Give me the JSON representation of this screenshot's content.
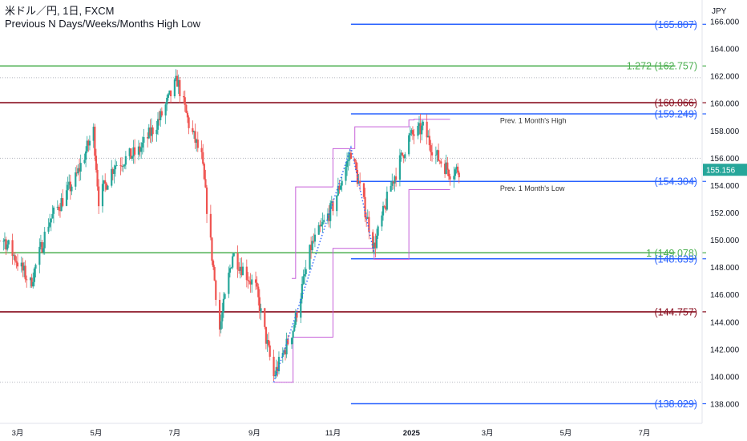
{
  "header": {
    "title_line1": "米ドル／円, 1日, FXCM",
    "title_line2": "Previous N Days/Weeks/Months High Low"
  },
  "colors": {
    "up": "#26a69a",
    "down": "#ef5350",
    "blue_level": "#2962ff",
    "green_level": "#4caf50",
    "maroon_level": "#880e1f",
    "purple_step": "#c660d9",
    "projection": "#2962ff",
    "price_tag": "#26a69a"
  },
  "chart_data": {
    "type": "candlestick",
    "title": "米ドル／円, 1日, FXCM",
    "subtitle": "Previous N Days/Weeks/Months High Low",
    "currency": "JPY",
    "current_price": "155.156",
    "ylim": [
      137.0,
      167.0
    ],
    "y_ticks": [
      "138.000",
      "140.000",
      "142.000",
      "144.000",
      "146.000",
      "148.000",
      "150.000",
      "152.000",
      "154.000",
      "156.000",
      "158.000",
      "160.000",
      "162.000",
      "164.000",
      "166.000"
    ],
    "x_ticks": [
      {
        "label": "3月",
        "date": "2024-03-01"
      },
      {
        "label": "5月",
        "date": "2024-05-01"
      },
      {
        "label": "7月",
        "date": "2024-07-01"
      },
      {
        "label": "9月",
        "date": "2024-09-01"
      },
      {
        "label": "11月",
        "date": "2024-11-01"
      },
      {
        "label": "2025",
        "date": "2025-01-01",
        "bold": true
      },
      {
        "label": "3月",
        "date": "2025-03-01"
      },
      {
        "label": "5月",
        "date": "2025-05-01"
      },
      {
        "label": "7月",
        "date": "2025-07-01"
      }
    ],
    "price_path": [
      {
        "date": "2024-02-01",
        "close": 150.5
      },
      {
        "date": "2024-02-20",
        "close": 150.0
      },
      {
        "date": "2024-03-11",
        "close": 146.8
      },
      {
        "date": "2024-03-25",
        "close": 151.3
      },
      {
        "date": "2024-04-15",
        "close": 154.5
      },
      {
        "date": "2024-04-29",
        "close": 158.0
      },
      {
        "date": "2024-05-03",
        "close": 153.0
      },
      {
        "date": "2024-05-15",
        "close": 155.5
      },
      {
        "date": "2024-06-03",
        "close": 156.5
      },
      {
        "date": "2024-06-20",
        "close": 159.0
      },
      {
        "date": "2024-07-03",
        "close": 161.7
      },
      {
        "date": "2024-07-12",
        "close": 158.5
      },
      {
        "date": "2024-07-22",
        "close": 156.0
      },
      {
        "date": "2024-08-05",
        "close": 143.5
      },
      {
        "date": "2024-08-15",
        "close": 149.0
      },
      {
        "date": "2024-09-02",
        "close": 146.5
      },
      {
        "date": "2024-09-16",
        "close": 140.0
      },
      {
        "date": "2024-10-01",
        "close": 143.5
      },
      {
        "date": "2024-10-15",
        "close": 149.5
      },
      {
        "date": "2024-11-01",
        "close": 152.5
      },
      {
        "date": "2024-11-15",
        "close": 156.5
      },
      {
        "date": "2024-12-03",
        "close": 149.5
      },
      {
        "date": "2024-12-16",
        "close": 154.0
      },
      {
        "date": "2024-12-30",
        "close": 157.5
      },
      {
        "date": "2025-01-10",
        "close": 158.2
      },
      {
        "date": "2025-01-20",
        "close": 156.2
      },
      {
        "date": "2025-01-31",
        "close": 155.0
      },
      {
        "date": "2025-02-07",
        "close": 155.2
      }
    ],
    "levels": [
      {
        "value": 165.807,
        "label": "(165.807)",
        "color": "blue",
        "start": "2024-11-15",
        "end": "2025-08-10"
      },
      {
        "value": 162.757,
        "label": "1.272 (162.757)",
        "color": "green",
        "start": "2024-01-25",
        "end": "2025-07-25"
      },
      {
        "value": 160.066,
        "label": "(160.066)",
        "color": "maroon",
        "start": "2024-01-25",
        "end": "2025-08-10"
      },
      {
        "value": 159.249,
        "label": "(159.249)",
        "color": "blue",
        "start": "2024-11-15",
        "end": "2025-08-10"
      },
      {
        "value": 154.304,
        "label": "(154.304)",
        "color": "blue",
        "start": "2024-11-15",
        "end": "2025-08-10"
      },
      {
        "value": 149.078,
        "label": "1 (149.078)",
        "color": "green",
        "start": "2024-01-25",
        "end": "2025-07-25"
      },
      {
        "value": 148.639,
        "label": "(148.639)",
        "color": "blue",
        "start": "2024-11-15",
        "end": "2025-08-10"
      },
      {
        "value": 144.757,
        "label": "(144.757)",
        "color": "maroon",
        "start": "2024-01-25",
        "end": "2025-08-10"
      },
      {
        "value": 138.029,
        "label": "(138.029)",
        "color": "blue",
        "start": "2024-11-15",
        "end": "2025-08-10"
      }
    ],
    "dotted_levels": [
      161.9,
      156.0,
      139.6
    ],
    "annotations": [
      {
        "text": "Prev. 1 Month's High",
        "date": "2025-01-20",
        "value": 158.75
      },
      {
        "text": "Prev. 1 Month's Low",
        "date": "2025-01-20",
        "value": 153.8
      }
    ],
    "step_high": [
      {
        "date": "2024-09-30",
        "value": 147.2
      },
      {
        "date": "2024-10-03",
        "value": 153.9
      },
      {
        "date": "2024-11-01",
        "value": 156.7
      },
      {
        "date": "2024-11-18",
        "value": 158.3
      },
      {
        "date": "2024-12-30",
        "value": 158.8
      },
      {
        "date": "2025-01-03",
        "value": 158.85
      },
      {
        "date": "2025-01-31",
        "value": 158.85
      }
    ],
    "step_low": [
      {
        "date": "2024-09-16",
        "value": 139.6
      },
      {
        "date": "2024-10-01",
        "value": 139.6
      },
      {
        "date": "2024-10-01",
        "value": 142.9
      },
      {
        "date": "2024-11-01",
        "value": 142.9
      },
      {
        "date": "2024-11-01",
        "value": 149.4
      },
      {
        "date": "2024-12-03",
        "value": 149.4
      },
      {
        "date": "2024-12-03",
        "value": 148.6
      },
      {
        "date": "2024-12-30",
        "value": 148.6
      },
      {
        "date": "2024-12-30",
        "value": 153.7
      },
      {
        "date": "2025-01-31",
        "value": 153.7
      }
    ],
    "projection_line": [
      {
        "date": "2024-09-16",
        "value": 139.6
      },
      {
        "date": "2024-11-15",
        "value": 156.8
      },
      {
        "date": "2024-12-03",
        "value": 149.0
      }
    ]
  }
}
